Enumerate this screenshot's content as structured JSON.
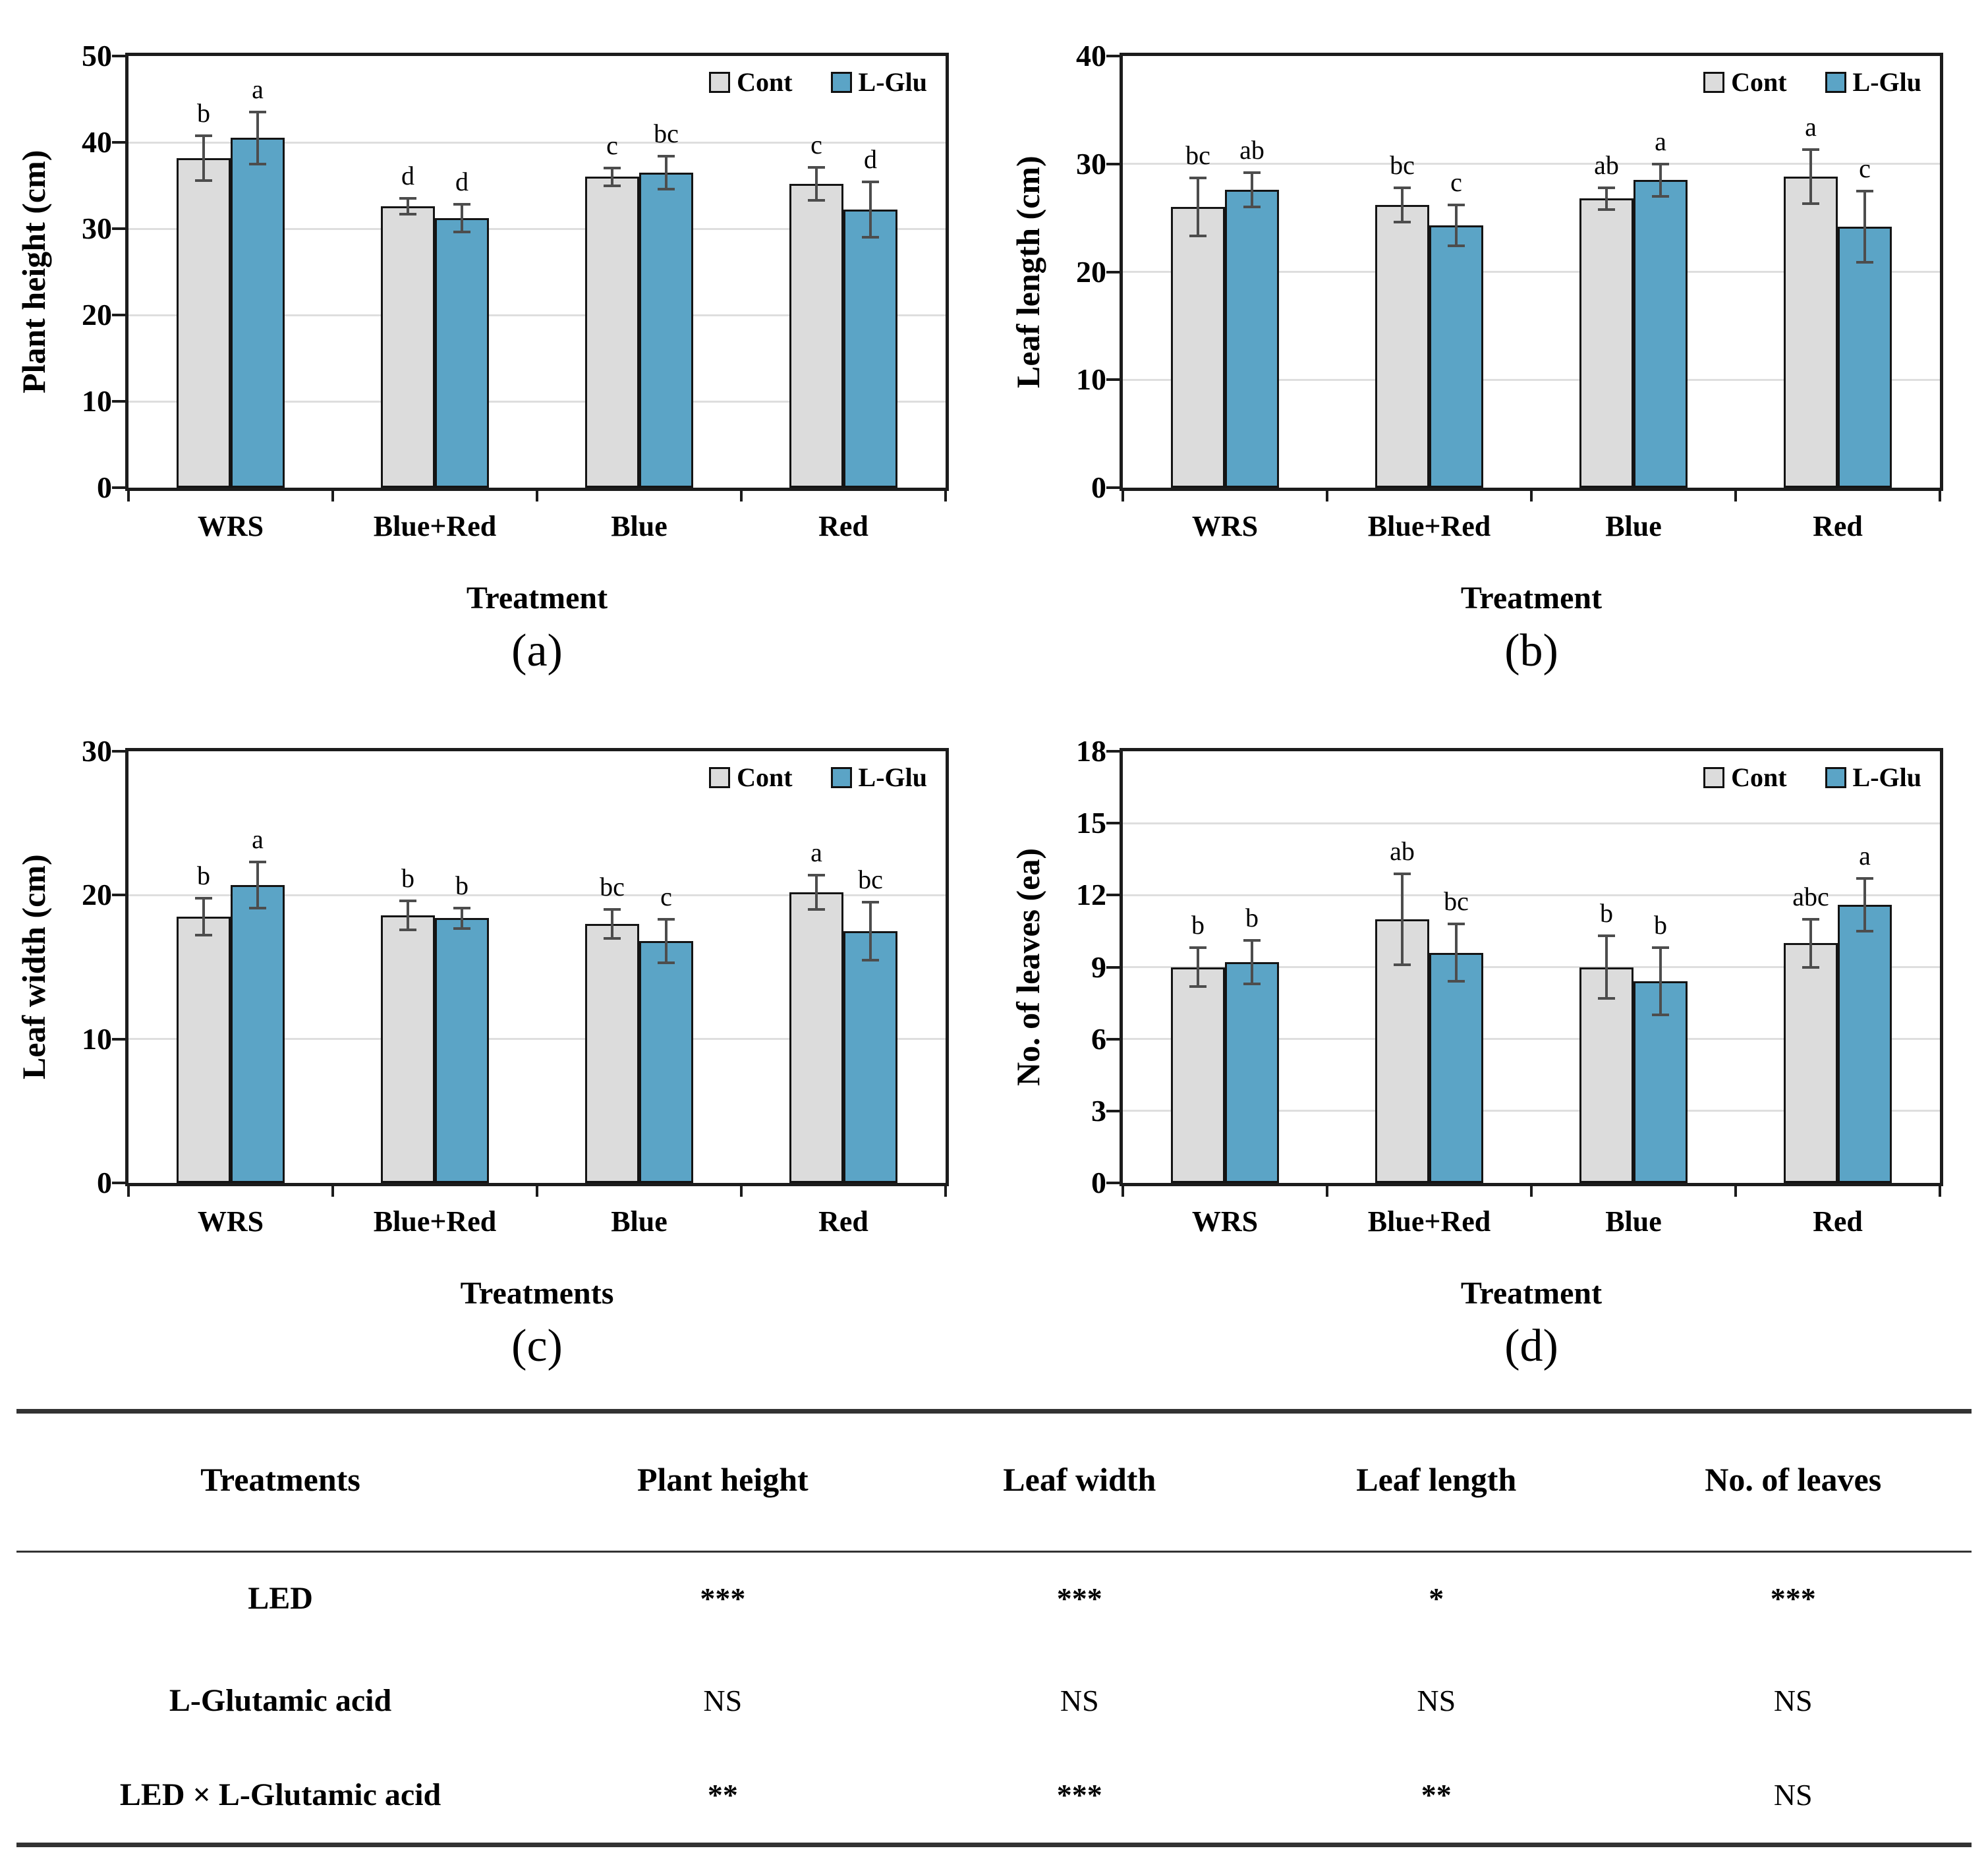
{
  "colors": {
    "cont_bar": "#dcdcdc",
    "lglu_bar": "#5ba4c6",
    "bar_outline": "#141414",
    "error_bar": "#4d4d4d",
    "gridline": "#dedede"
  },
  "chart_data": [
    {
      "id": "a",
      "type": "bar",
      "ylabel": "Plant height (cm)",
      "xlabel": "Treatment",
      "caption": "(a)",
      "ylim": [
        0,
        50
      ],
      "yticks": [
        0,
        10,
        20,
        30,
        40,
        50
      ],
      "grid": true,
      "legend_position": "top-right",
      "categories": [
        "WRS",
        "Blue+Red",
        "Blue",
        "Red"
      ],
      "legend": [
        "Cont",
        "L-Glu"
      ],
      "series": [
        {
          "name": "Cont",
          "values": [
            38.2,
            32.6,
            36.0,
            35.2
          ],
          "errors": [
            2.6,
            0.9,
            1.0,
            1.9
          ],
          "letters": [
            "b",
            "d",
            "c",
            "c"
          ]
        },
        {
          "name": "L-Glu",
          "values": [
            40.5,
            31.2,
            36.5,
            32.2
          ],
          "errors": [
            3.0,
            1.6,
            1.9,
            3.2
          ],
          "letters": [
            "a",
            "d",
            "bc",
            "d"
          ]
        }
      ]
    },
    {
      "id": "b",
      "type": "bar",
      "ylabel": "Leaf length (cm)",
      "xlabel": "Treatment",
      "caption": "(b)",
      "ylim": [
        0,
        40
      ],
      "yticks": [
        0,
        10,
        20,
        30,
        40
      ],
      "grid": true,
      "legend_position": "top-right",
      "categories": [
        "WRS",
        "Blue+Red",
        "Blue",
        "Red"
      ],
      "legend": [
        "Cont",
        "L-Glu"
      ],
      "series": [
        {
          "name": "Cont",
          "values": [
            26.0,
            26.2,
            26.8,
            28.8
          ],
          "errors": [
            2.7,
            1.6,
            1.0,
            2.5
          ],
          "letters": [
            "bc",
            "bc",
            "ab",
            "a"
          ]
        },
        {
          "name": "L-Glu",
          "values": [
            27.6,
            24.3,
            28.5,
            24.2
          ],
          "errors": [
            1.6,
            1.9,
            1.5,
            3.3
          ],
          "letters": [
            "ab",
            "c",
            "a",
            "c"
          ]
        }
      ]
    },
    {
      "id": "c",
      "type": "bar",
      "ylabel": "Leaf width (cm)",
      "xlabel": "Treatments",
      "caption": "(c)",
      "ylim": [
        0,
        30
      ],
      "yticks": [
        0,
        10,
        20,
        30
      ],
      "grid": true,
      "legend_position": "top-right",
      "categories": [
        "WRS",
        "Blue+Red",
        "Blue",
        "Red"
      ],
      "legend": [
        "Cont",
        "L-Glu"
      ],
      "series": [
        {
          "name": "Cont",
          "values": [
            18.5,
            18.6,
            18.0,
            20.2
          ],
          "errors": [
            1.3,
            1.0,
            1.0,
            1.2
          ],
          "letters": [
            "b",
            "b",
            "bc",
            "a"
          ]
        },
        {
          "name": "L-Glu",
          "values": [
            20.7,
            18.4,
            16.8,
            17.5
          ],
          "errors": [
            1.6,
            0.7,
            1.5,
            2.0
          ],
          "letters": [
            "a",
            "b",
            "c",
            "bc"
          ]
        }
      ]
    },
    {
      "id": "d",
      "type": "bar",
      "ylabel": "No. of leaves (ea)",
      "xlabel": "Treatment",
      "caption": "(d)",
      "ylim": [
        0,
        18
      ],
      "yticks": [
        0,
        3,
        6,
        9,
        12,
        15,
        18
      ],
      "grid": true,
      "legend_position": "top-right",
      "categories": [
        "WRS",
        "Blue+Red",
        "Blue",
        "Red"
      ],
      "legend": [
        "Cont",
        "L-Glu"
      ],
      "series": [
        {
          "name": "Cont",
          "values": [
            9.0,
            11.0,
            9.0,
            10.0
          ],
          "errors": [
            0.8,
            1.9,
            1.3,
            1.0
          ],
          "letters": [
            "b",
            "ab",
            "b",
            "abc"
          ]
        },
        {
          "name": "L-Glu",
          "values": [
            9.2,
            9.6,
            8.4,
            11.6
          ],
          "errors": [
            0.9,
            1.2,
            1.4,
            1.1
          ],
          "letters": [
            "b",
            "bc",
            "b",
            "a"
          ]
        }
      ]
    }
  ],
  "table": {
    "headers": [
      "Treatments",
      "Plant height",
      "Leaf width",
      "Leaf length",
      "No. of leaves"
    ],
    "rows": [
      {
        "label": "LED",
        "values": [
          "***",
          "***",
          "*",
          "***"
        ]
      },
      {
        "label": "L-Glutamic acid",
        "values": [
          "NS",
          "NS",
          "NS",
          "NS"
        ]
      },
      {
        "label": "LED × L-Glutamic acid",
        "values": [
          "**",
          "***",
          "**",
          "NS"
        ]
      }
    ]
  }
}
